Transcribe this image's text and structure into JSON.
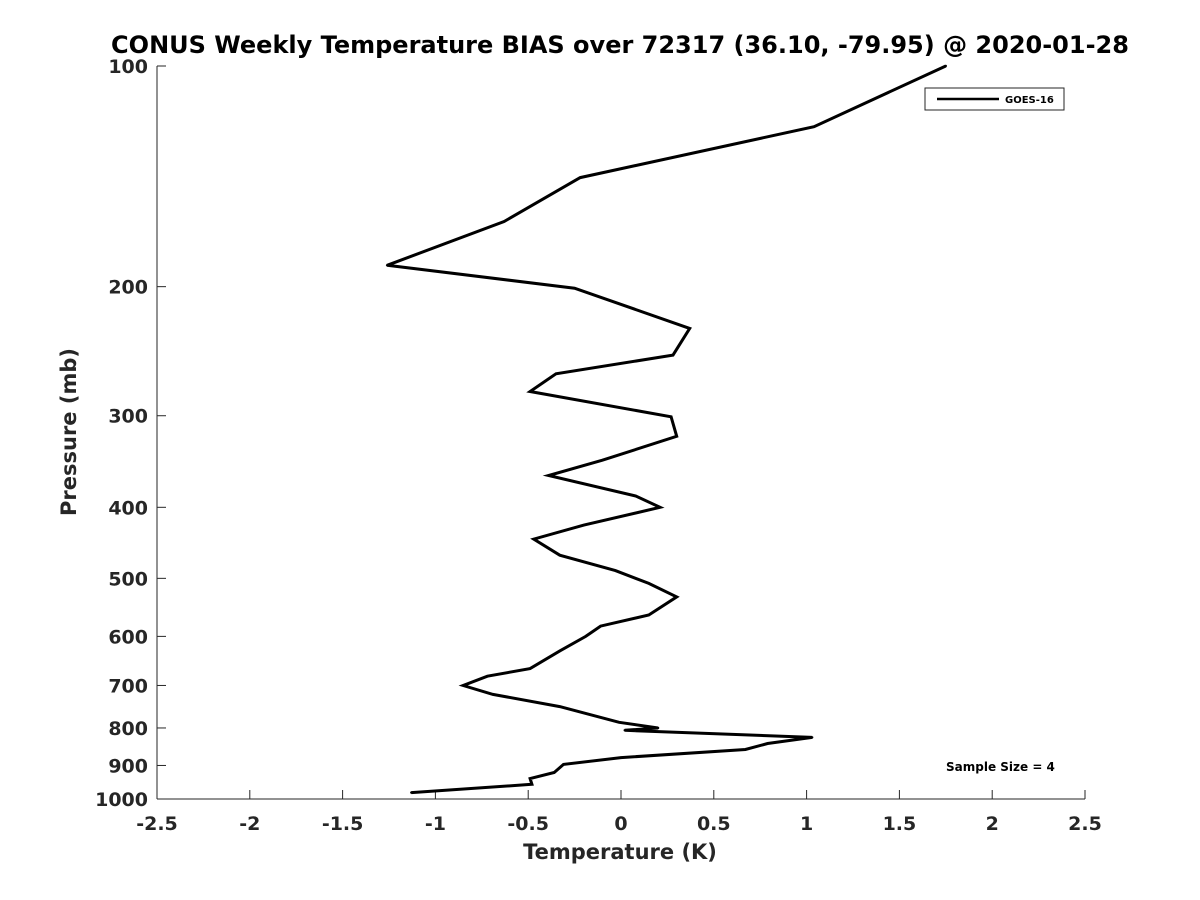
{
  "chart_data": {
    "type": "line",
    "title": "CONUS Weekly Temperature BIAS over 72317 (36.10, -79.95) @ 2020-01-28",
    "xlabel": "Temperature (K)",
    "ylabel": "Pressure (mb)",
    "xlim": [
      -2.5,
      2.5
    ],
    "ylim": [
      1000,
      100
    ],
    "y_scale": "log",
    "y_reversed": true,
    "xticks": [
      -2.5,
      -2,
      -1.5,
      -1,
      -0.5,
      0,
      0.5,
      1,
      1.5,
      2,
      2.5
    ],
    "xtick_labels": [
      "-2.5",
      "-2",
      "-1.5",
      "-1",
      "-0.5",
      "0",
      "0.5",
      "1",
      "1.5",
      "2",
      "2.5"
    ],
    "yticks": [
      100,
      200,
      300,
      400,
      500,
      600,
      700,
      800,
      900,
      1000
    ],
    "ytick_labels": [
      "100",
      "200",
      "300",
      "400",
      "500",
      "600",
      "700",
      "800",
      "900",
      "1000"
    ],
    "grid": false,
    "legend_position": "top-right",
    "annotation": "Sample Size = 4",
    "series": [
      {
        "name": "GOES-16",
        "color": "#000000",
        "points": [
          {
            "x": 1.75,
            "y": 100
          },
          {
            "x": 1.04,
            "y": 121
          },
          {
            "x": -0.22,
            "y": 142
          },
          {
            "x": -0.63,
            "y": 163
          },
          {
            "x": -1.26,
            "y": 187
          },
          {
            "x": -0.25,
            "y": 201
          },
          {
            "x": 0.37,
            "y": 228
          },
          {
            "x": 0.28,
            "y": 248
          },
          {
            "x": -0.35,
            "y": 263
          },
          {
            "x": -0.49,
            "y": 278
          },
          {
            "x": 0.27,
            "y": 301
          },
          {
            "x": 0.3,
            "y": 320
          },
          {
            "x": -0.1,
            "y": 345
          },
          {
            "x": -0.39,
            "y": 362
          },
          {
            "x": 0.08,
            "y": 386
          },
          {
            "x": 0.21,
            "y": 400
          },
          {
            "x": -0.2,
            "y": 423
          },
          {
            "x": -0.47,
            "y": 442
          },
          {
            "x": -0.33,
            "y": 465
          },
          {
            "x": -0.03,
            "y": 488
          },
          {
            "x": 0.15,
            "y": 508
          },
          {
            "x": 0.3,
            "y": 530
          },
          {
            "x": 0.15,
            "y": 561
          },
          {
            "x": -0.11,
            "y": 581
          },
          {
            "x": -0.19,
            "y": 600
          },
          {
            "x": -0.33,
            "y": 628
          },
          {
            "x": -0.49,
            "y": 664
          },
          {
            "x": -0.72,
            "y": 680
          },
          {
            "x": -0.85,
            "y": 700
          },
          {
            "x": -0.69,
            "y": 720
          },
          {
            "x": -0.33,
            "y": 748
          },
          {
            "x": -0.01,
            "y": 786
          },
          {
            "x": 0.2,
            "y": 800
          },
          {
            "x": 0.02,
            "y": 806
          },
          {
            "x": 1.03,
            "y": 824
          },
          {
            "x": 0.79,
            "y": 840
          },
          {
            "x": 0.67,
            "y": 856
          },
          {
            "x": 0.0,
            "y": 878
          },
          {
            "x": -0.31,
            "y": 897
          },
          {
            "x": -0.36,
            "y": 920
          },
          {
            "x": -0.49,
            "y": 938
          },
          {
            "x": -0.48,
            "y": 955
          },
          {
            "x": -1.13,
            "y": 980
          }
        ]
      }
    ]
  }
}
